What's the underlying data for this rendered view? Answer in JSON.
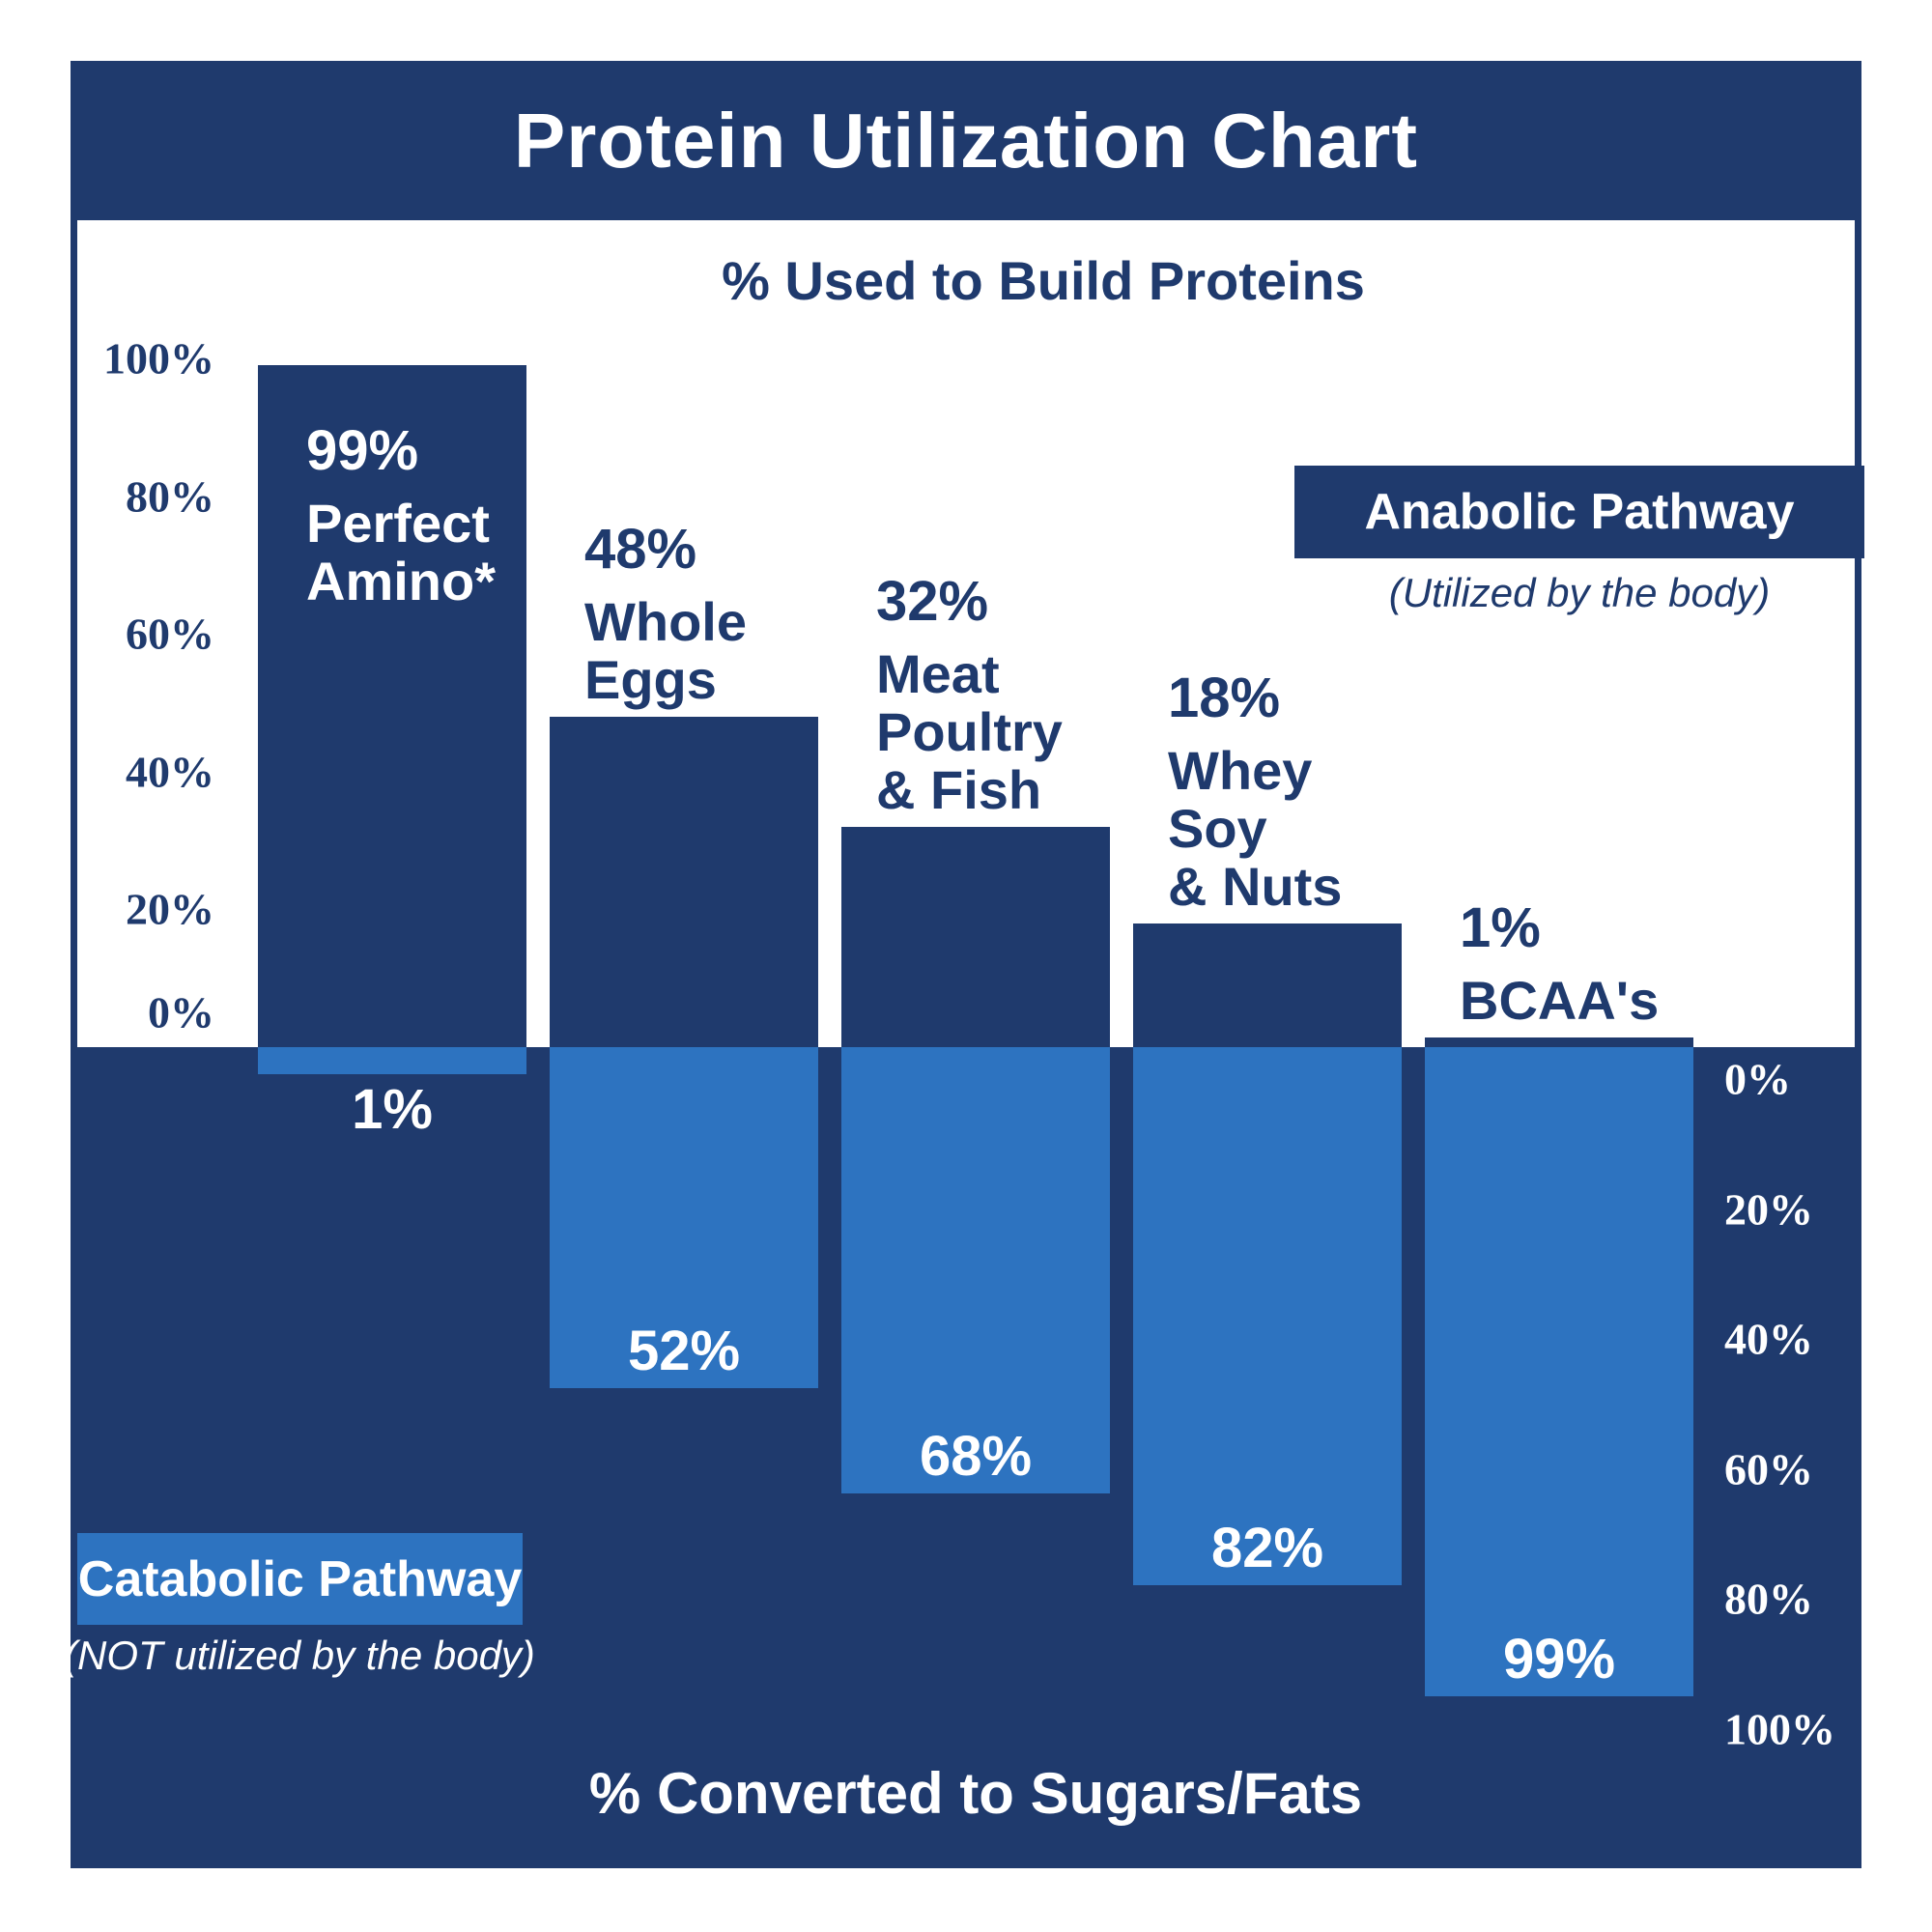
{
  "title": "Protein Utilization Chart",
  "colors": {
    "navy": "#1f3a6d",
    "blue": "#2d73c0",
    "white": "#ffffff"
  },
  "top_axis": {
    "label": "% Used to Build Proteins",
    "ticks": [
      "100%",
      "80%",
      "60%",
      "40%",
      "20%",
      "0%"
    ]
  },
  "bottom_axis": {
    "label": "% Converted to Sugars/Fats",
    "ticks": [
      "0%",
      "20%",
      "40%",
      "60%",
      "80%",
      "100%"
    ]
  },
  "legend": {
    "anabolic": {
      "label": "Anabolic Pathway",
      "note": "(Utilized by the body)"
    },
    "catabolic": {
      "label": "Catabolic Pathway",
      "note": "(NOT utilized by the body)"
    }
  },
  "bars": [
    {
      "value_label": "99%",
      "name_lines": [
        "Perfect",
        "Amino*"
      ],
      "down_label": "1%"
    },
    {
      "value_label": "48%",
      "name_lines": [
        "Whole",
        "Eggs"
      ],
      "down_label": "52%"
    },
    {
      "value_label": "32%",
      "name_lines": [
        "Meat",
        "Poultry",
        "& Fish"
      ],
      "down_label": "68%"
    },
    {
      "value_label": "18%",
      "name_lines": [
        "Whey",
        "Soy",
        "& Nuts"
      ],
      "down_label": "82%"
    },
    {
      "value_label": "1%",
      "name_lines": [
        "BCAA's"
      ],
      "down_label": "99%"
    }
  ],
  "chart_data": {
    "type": "bar",
    "subtype": "diverging",
    "title": "Protein Utilization Chart",
    "categories": [
      "Perfect Amino*",
      "Whole Eggs",
      "Meat Poultry & Fish",
      "Whey Soy & Nuts",
      "BCAA's"
    ],
    "series": [
      {
        "name": "Anabolic Pathway - % Used to Build Proteins (Utilized by the body)",
        "values": [
          99,
          48,
          32,
          18,
          1
        ]
      },
      {
        "name": "Catabolic Pathway - % Converted to Sugars/Fats (NOT utilized by the body)",
        "values": [
          1,
          52,
          68,
          82,
          99
        ]
      }
    ],
    "upper_axis": {
      "label": "% Used to Build Proteins",
      "range": [
        0,
        100
      ],
      "tick_step": 20,
      "side": "left"
    },
    "lower_axis": {
      "label": "% Converted to Sugars/Fats",
      "range": [
        0,
        100
      ],
      "tick_step": 20,
      "side": "right",
      "direction": "down"
    },
    "grid": false,
    "legend_position": {
      "anabolic": "upper-right",
      "catabolic": "lower-left"
    }
  }
}
